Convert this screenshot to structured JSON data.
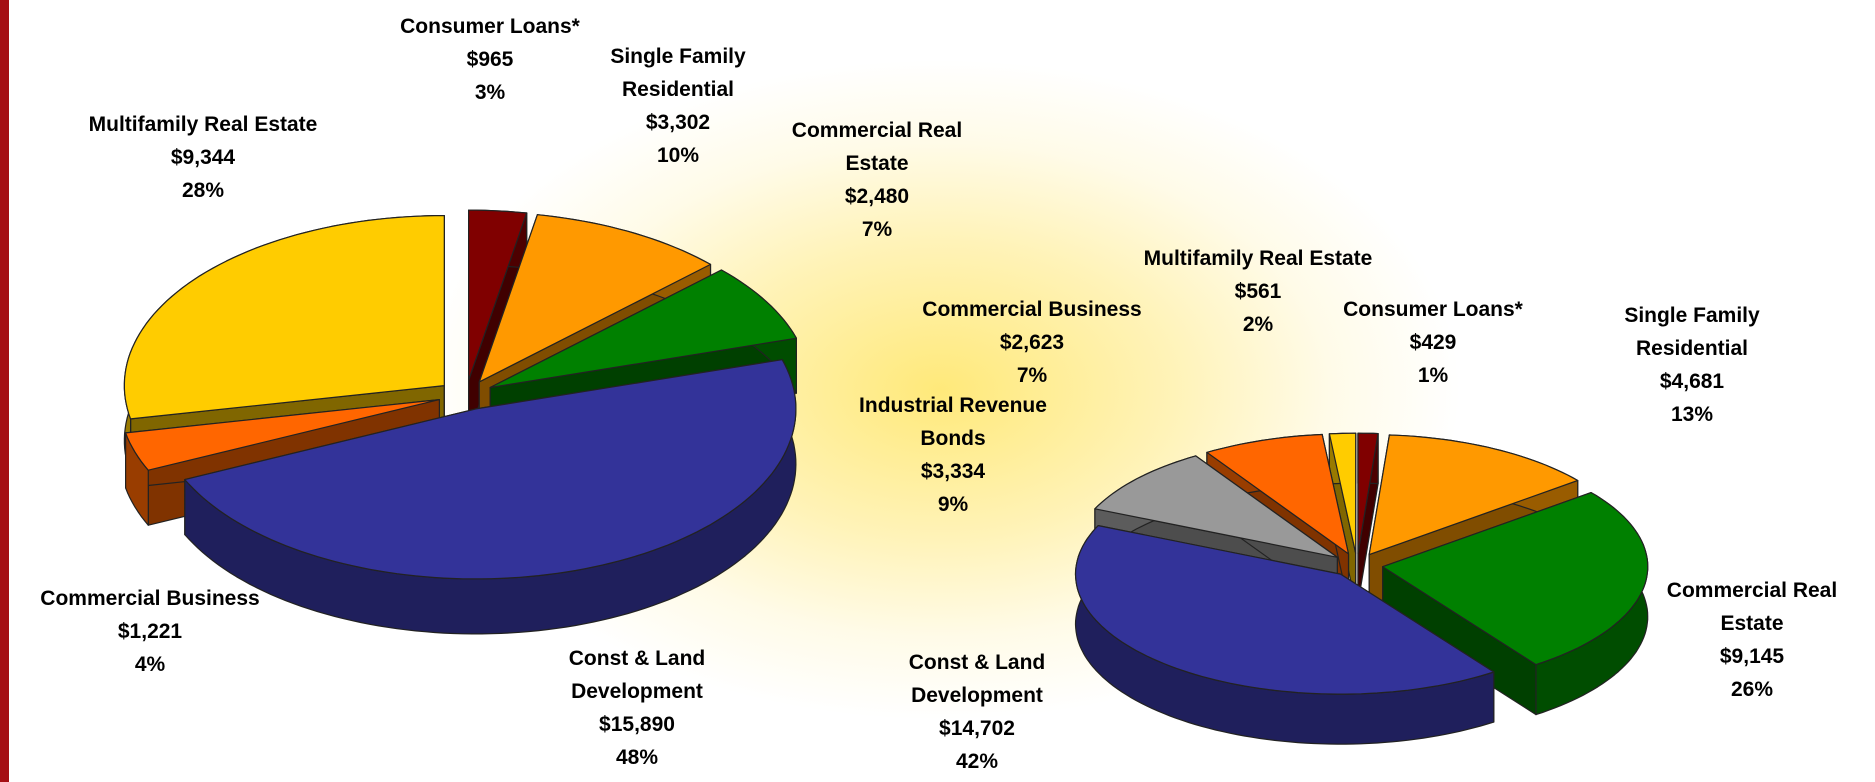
{
  "chart_data": [
    {
      "type": "pie",
      "categories": [
        "Consumer Loans*",
        "Single Family Residential",
        "Commercial Real Estate",
        "Const & Land Development",
        "Commercial Business",
        "Multifamily Real Estate"
      ],
      "values": [
        965,
        3302,
        2480,
        15890,
        1221,
        9344
      ],
      "value_labels": [
        "$965",
        "$3,302",
        "$2,480",
        "$15,890",
        "$1,221",
        "$9,344"
      ],
      "percents": [
        3,
        10,
        7,
        48,
        4,
        28
      ],
      "percent_labels": [
        "3%",
        "10%",
        "7%",
        "48%",
        "4%",
        "28%"
      ],
      "colors": [
        "#800000",
        "#ff9900",
        "#008000",
        "#333399",
        "#ff6600",
        "#ffcc00"
      ]
    },
    {
      "type": "pie",
      "categories": [
        "Consumer Loans*",
        "Single Family Residential",
        "Commercial Real Estate",
        "Const & Land Development",
        "Industrial Revenue Bonds",
        "Commercial Business",
        "Multifamily Real Estate"
      ],
      "values": [
        429,
        4681,
        9145,
        14702,
        3334,
        2623,
        561
      ],
      "value_labels": [
        "$429",
        "$4,681",
        "$9,145",
        "$14,702",
        "$3,334",
        "$2,623",
        "$561"
      ],
      "percents": [
        1,
        13,
        26,
        42,
        9,
        7,
        2
      ],
      "percent_labels": [
        "1%",
        "13%",
        "26%",
        "42%",
        "9%",
        "7%",
        "2%"
      ],
      "colors": [
        "#800000",
        "#ff9900",
        "#008000",
        "#333399",
        "#999999",
        "#ff6600",
        "#ffcc00"
      ]
    }
  ]
}
